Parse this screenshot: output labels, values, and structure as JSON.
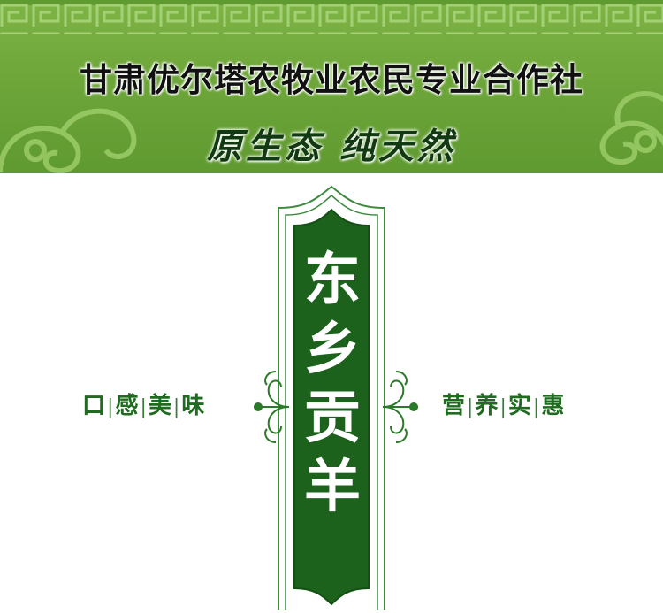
{
  "header": {
    "organization": "甘肃优尔塔农牧业农民专业合作社",
    "slogan": "原生态  纯天然"
  },
  "product": {
    "name_chars": [
      "东",
      "乡",
      "贡",
      "羊"
    ]
  },
  "features": {
    "left": [
      "口",
      "感",
      "美",
      "味"
    ],
    "right": [
      "营",
      "养",
      "实",
      "惠"
    ],
    "separator": "|"
  },
  "colors": {
    "banner_green": "#6ea63a",
    "plaque_green": "#1c621c",
    "text_green": "#1f6b1f"
  }
}
